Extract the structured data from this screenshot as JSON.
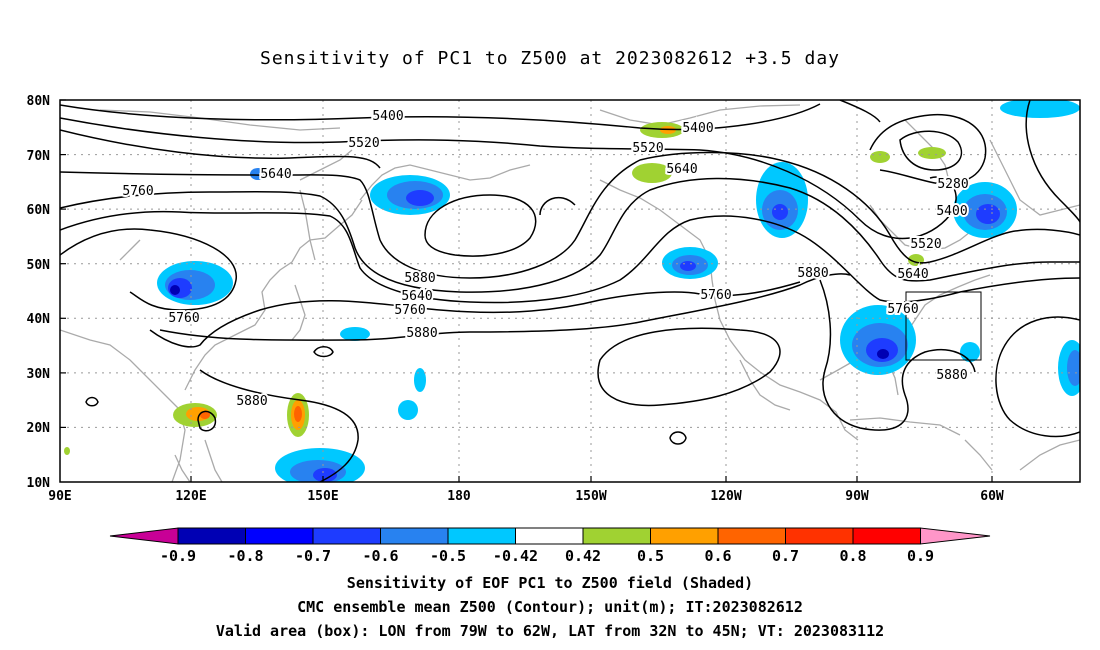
{
  "title": "Sensitivity of PC1 to Z500 at 2023082612 +3.5 day",
  "lat_labels": [
    "80N",
    "70N",
    "60N",
    "50N",
    "40N",
    "30N",
    "20N",
    "10N"
  ],
  "lon_labels": [
    "90E",
    "120E",
    "150E",
    "180",
    "150W",
    "120W",
    "90W",
    "60W"
  ],
  "contour_labels": [
    "5400",
    "5520",
    "5640",
    "5760",
    "5880",
    "5280",
    "5400",
    "5520",
    "5640",
    "5760",
    "5880",
    "5760",
    "5880",
    "5880",
    "5760",
    "5640",
    "5520",
    "5400",
    "5640",
    "5760",
    "5880"
  ],
  "colorbar": {
    "labels": [
      "-0.9",
      "-0.8",
      "-0.7",
      "-0.6",
      "-0.5",
      "-0.42",
      "0.42",
      "0.5",
      "0.6",
      "0.7",
      "0.8",
      "0.9"
    ],
    "colors": [
      "#0000b4",
      "#0000ff",
      "#1e3cff",
      "#2882f0",
      "#00c8ff",
      "#ffffff",
      "#a0d232",
      "#ffa000",
      "#ff6400",
      "#ff3200",
      "#ff0000"
    ],
    "end_low_color": "#c80096",
    "end_high_color": "#ff96c8"
  },
  "captions": [
    "Sensitivity of EOF PC1 to Z500 field (Shaded)",
    "CMC ensemble mean Z500 (Contour); unit(m); IT:2023082612",
    "Valid area (box): LON from 79W to 62W, LAT from 32N to 45N; VT: 2023083112"
  ]
}
